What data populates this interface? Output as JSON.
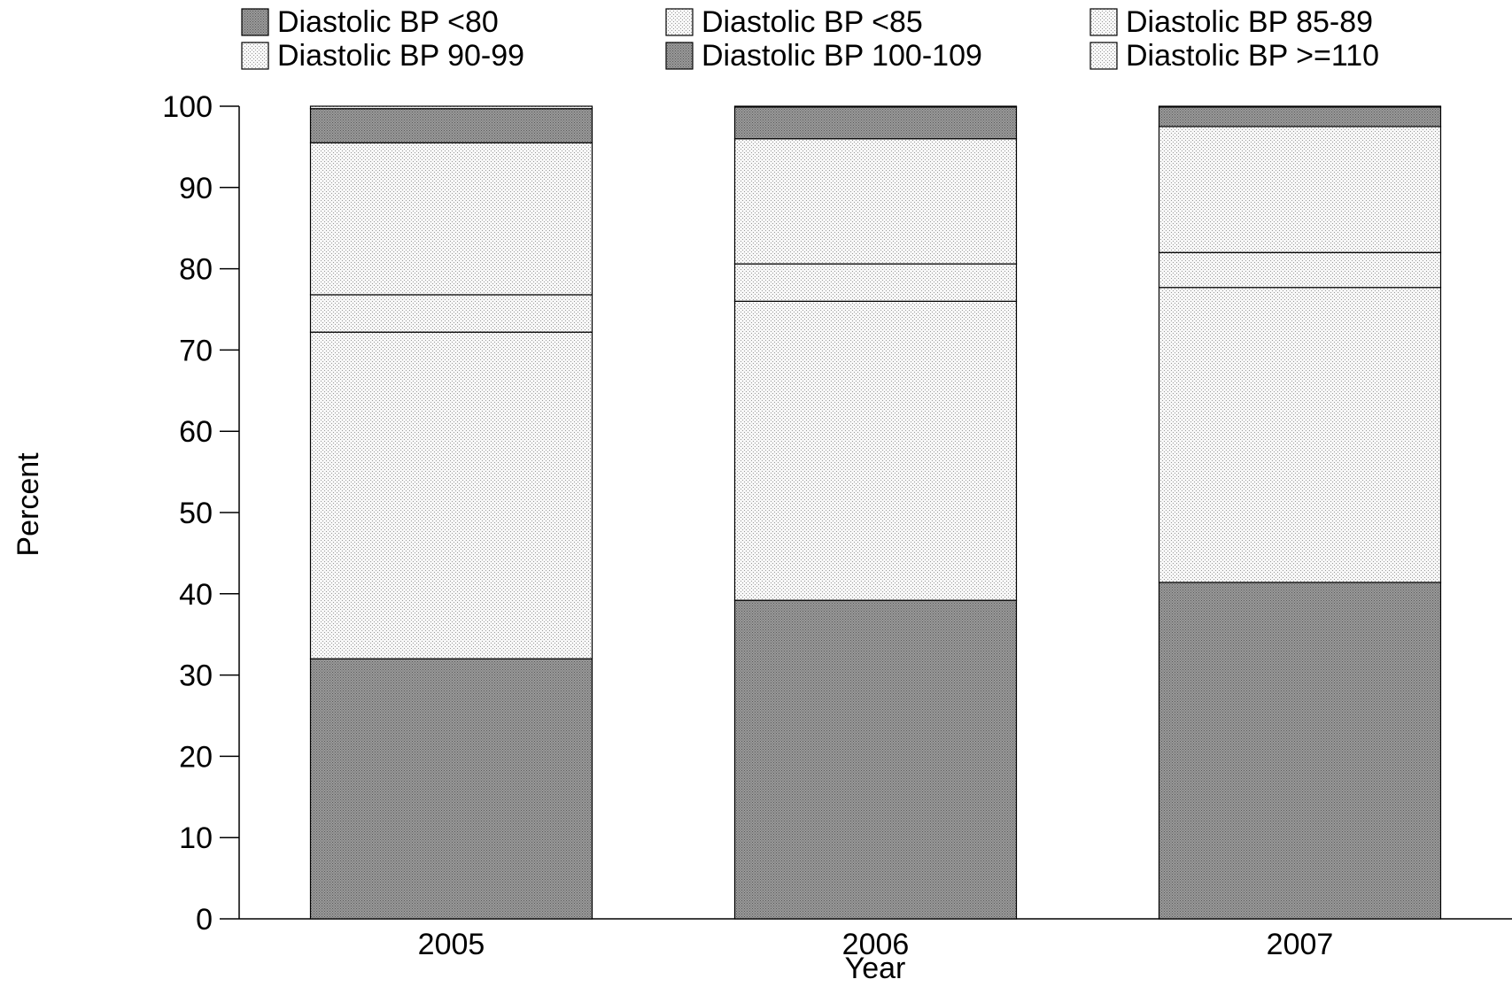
{
  "chart_data": {
    "type": "bar",
    "stacked": true,
    "title": "",
    "xlabel": "Year",
    "ylabel": "Percent",
    "ylim": [
      0,
      100
    ],
    "yticks": [
      0,
      10,
      20,
      30,
      40,
      50,
      60,
      70,
      80,
      90,
      100
    ],
    "categories": [
      "2005",
      "2006",
      "2007"
    ],
    "grid": false,
    "legend_position": "top",
    "series": [
      {
        "name": "Diastolic BP <80",
        "values": [
          32.0,
          39.2,
          41.4
        ],
        "pattern": "dark"
      },
      {
        "name": "Diastolic BP <85",
        "values": [
          40.2,
          36.8,
          36.3
        ],
        "pattern": "light"
      },
      {
        "name": "Diastolic BP 85-89",
        "values": [
          4.6,
          4.6,
          4.3
        ],
        "pattern": "light"
      },
      {
        "name": "Diastolic BP 90-99",
        "values": [
          18.7,
          15.4,
          15.5
        ],
        "pattern": "light"
      },
      {
        "name": "Diastolic BP 100-109",
        "values": [
          4.2,
          3.9,
          2.4
        ],
        "pattern": "dark"
      },
      {
        "name": "Diastolic BP >=110",
        "values": [
          0.3,
          0.1,
          0.1
        ],
        "pattern": "light"
      }
    ],
    "colors": {
      "dark": "#8a8a8a",
      "light": "#f2f2f2",
      "stroke": "#000000"
    }
  }
}
